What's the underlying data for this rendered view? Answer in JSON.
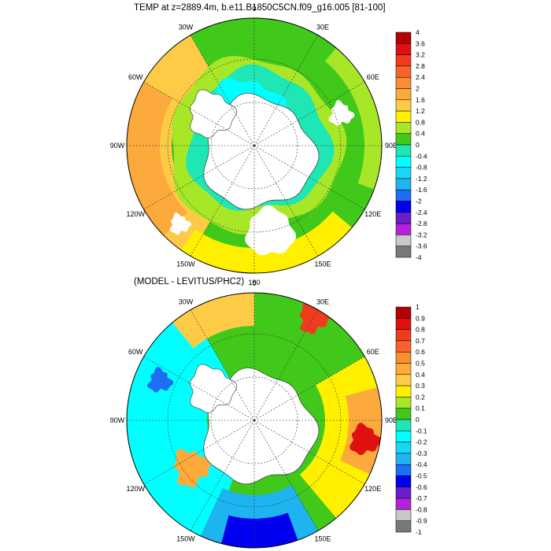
{
  "chart_data": [
    {
      "type": "heatmap",
      "projection": "south-polar-stereographic",
      "title": "TEMP at z=2889.4m, b.e11.B1850C5CN.f09_g16.005 [81-100]",
      "longitude_labels": [
        "0",
        "30E",
        "60E",
        "90E",
        "120E",
        "150E",
        "180",
        "150W",
        "120W",
        "90W",
        "60W",
        "30W"
      ],
      "colorbar": {
        "labels": [
          "4",
          "3.6",
          "3.2",
          "2.8",
          "2.4",
          "2",
          "1.6",
          "1.2",
          "0.8",
          "0.4",
          "0",
          "-0.4",
          "-0.8",
          "-1.2",
          "-1.6",
          "-2",
          "-2.4",
          "-2.8",
          "-3.2",
          "-3.6",
          "-4"
        ],
        "colors": [
          "#b30000",
          "#e01010",
          "#f03c1e",
          "#f7632a",
          "#fa8c32",
          "#fcaa3c",
          "#fdcb46",
          "#fff000",
          "#a8e628",
          "#40c81a",
          "#1ee6b4",
          "#00ffff",
          "#18d6f5",
          "#1eb4f0",
          "#1e6ef5",
          "#0000f0",
          "#6a1ec8",
          "#b420dc",
          "#c8c8c8",
          "#787878"
        ]
      },
      "field": {
        "description_bands": [
          {
            "region": "open ocean near 90W / 60W",
            "value_range": [
              1.2,
              2.0
            ]
          },
          {
            "region": "mid ring",
            "value_range": [
              0.4,
              1.2
            ]
          },
          {
            "region": "around Antarctica / Weddell",
            "value_range": [
              -0.4,
              0.0
            ]
          }
        ]
      },
      "land_color": "#ffffff",
      "missing_color": "#ffffff"
    },
    {
      "type": "heatmap",
      "projection": "south-polar-stereographic",
      "title": "(MODEL - LEVITUS/PHC2)",
      "longitude_labels": [
        "0",
        "30E",
        "60E",
        "90E",
        "120E",
        "150E",
        "180",
        "150W",
        "120W",
        "90W",
        "60W",
        "30W"
      ],
      "colorbar": {
        "labels": [
          "1",
          "0.9",
          "0.8",
          "0.7",
          "0.6",
          "0.5",
          "0.4",
          "0.3",
          "0.2",
          "0.1",
          "0",
          "-0.1",
          "-0.2",
          "-0.3",
          "-0.4",
          "-0.5",
          "-0.6",
          "-0.7",
          "-0.8",
          "-0.9",
          "-1"
        ],
        "colors": [
          "#b30000",
          "#e01010",
          "#f03c1e",
          "#f7632a",
          "#fa8c32",
          "#fcaa3c",
          "#fdcb46",
          "#fff000",
          "#a8e628",
          "#40c81a",
          "#1ee6b4",
          "#00ffff",
          "#18d6f5",
          "#1eb4f0",
          "#1e6ef5",
          "#0000f0",
          "#6a1ec8",
          "#b420dc",
          "#c8c8c8",
          "#787878"
        ]
      },
      "field": {
        "description_bands": [
          {
            "region": "Indian sector near 90E",
            "value_range": [
              0.3,
              1.0
            ]
          },
          {
            "region": "South Atlantic",
            "value_range": [
              0.1,
              0.3
            ]
          },
          {
            "region": "Ross Sea / 150W",
            "value_range": [
              -0.6,
              -0.2
            ]
          },
          {
            "region": "90W sector",
            "value_range": [
              -0.2,
              0.0
            ]
          }
        ]
      },
      "land_color": "#ffffff",
      "missing_color": "#ffffff"
    }
  ]
}
